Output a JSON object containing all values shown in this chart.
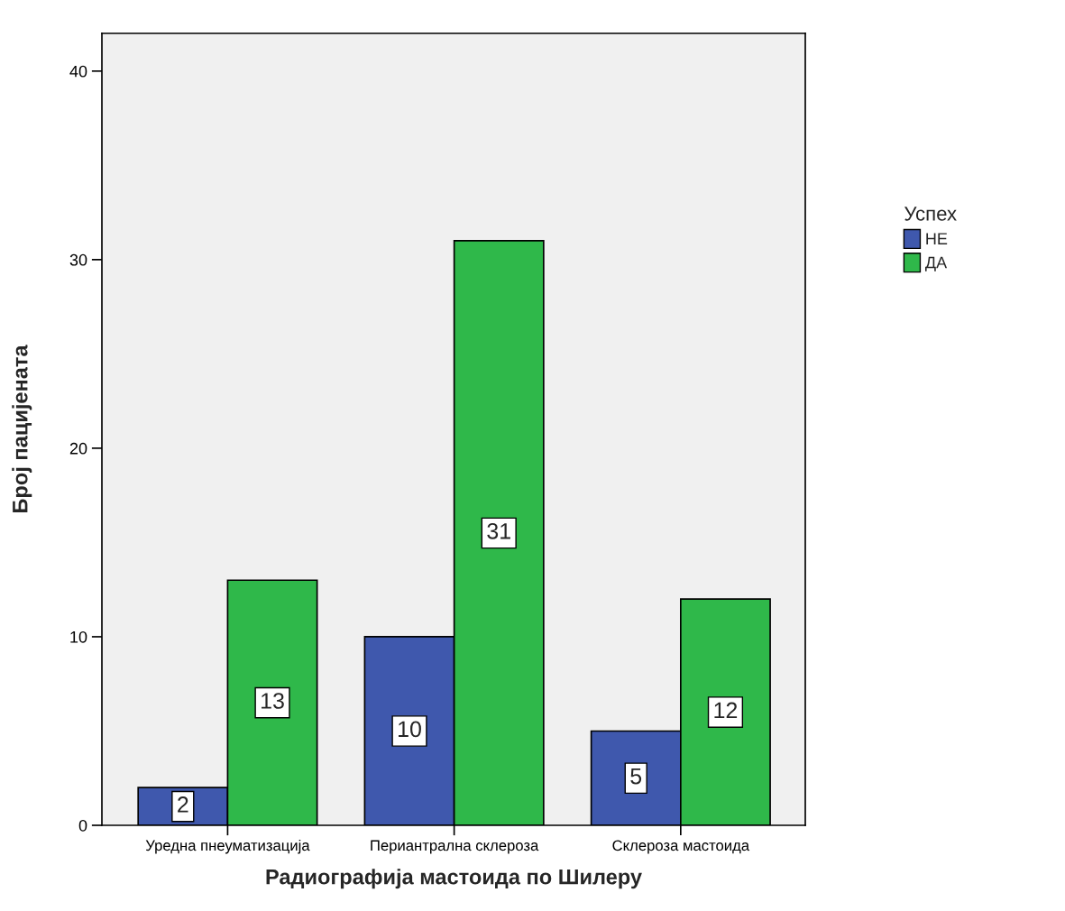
{
  "chart_data": {
    "type": "bar",
    "xlabel": "Радиографија мастоида по Шилеру",
    "ylabel": "Број пацијената",
    "legend_title": "Успех",
    "categories": [
      "Уредна пнеуматизација",
      "Периантрална склероза",
      "Склероза мастоида"
    ],
    "series": [
      {
        "name": "НЕ",
        "color": "#3f58ad",
        "values": [
          2,
          10,
          5
        ]
      },
      {
        "name": "ДА",
        "color": "#2fb84a",
        "values": [
          13,
          31,
          12
        ]
      }
    ],
    "ylim": [
      0,
      42
    ],
    "yticks": [
      0,
      10,
      20,
      30,
      40
    ],
    "grid": false,
    "legend": "right",
    "data_labels": true
  }
}
